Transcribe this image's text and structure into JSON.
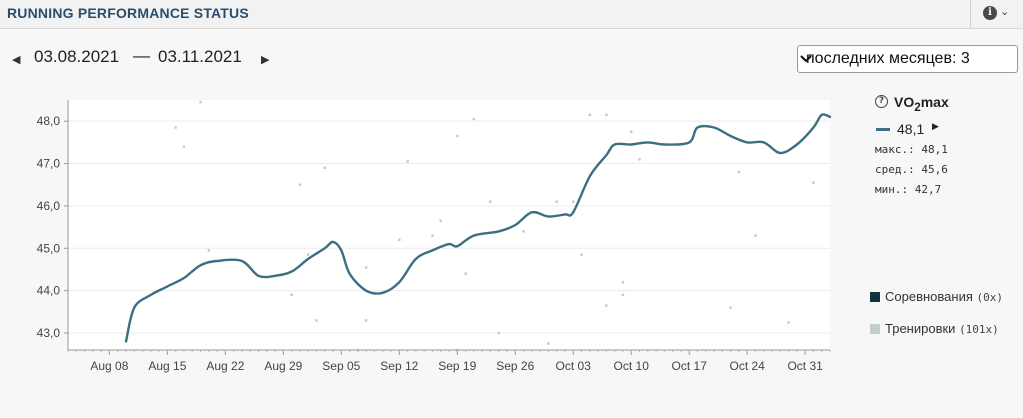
{
  "header": {
    "title": "RUNNING PERFORMANCE STATUS",
    "info_icon": "info-icon",
    "menu_icon": "chevron-down-icon"
  },
  "date_range": {
    "start": "03.08.2021",
    "separator": "—",
    "end": "03.11.2021",
    "prev_icon": "triangle-left-icon",
    "next_icon": "triangle-right-icon"
  },
  "period_select": {
    "selected": "последних месяцев: 3"
  },
  "legend": {
    "metric_main": "VO",
    "metric_sub": "2",
    "metric_tail": "max",
    "current_value": "48,1",
    "max": "макс.: 48,1",
    "avg": "сред.: 45,6",
    "min": "мин.: 42,7",
    "competitions_label": "Соревнования",
    "competitions_count": "(0x)",
    "trainings_label": "Тренировки",
    "trainings_count": "(101x)",
    "colors": {
      "line": "#3d6f82",
      "competitions": "#123140",
      "trainings": "#c3cfcd",
      "dots": "#c7c7c7"
    }
  },
  "chart_data": {
    "type": "line",
    "ylim": [
      42.6,
      48.5
    ],
    "yticks": [
      "43,0",
      "44,0",
      "45,0",
      "46,0",
      "47,0",
      "48,0"
    ],
    "ytick_values": [
      43,
      44,
      45,
      46,
      47,
      48
    ],
    "x_start": "2021-08-03",
    "x_end": "2021-11-03",
    "xticks": [
      "Aug 08",
      "Aug 15",
      "Aug 22",
      "Aug 29",
      "Sep 05",
      "Sep 12",
      "Sep 19",
      "Sep 26",
      "Oct 03",
      "Oct 10",
      "Oct 17",
      "Oct 24",
      "Oct 31"
    ],
    "xtick_dates": [
      "2021-08-08",
      "2021-08-15",
      "2021-08-22",
      "2021-08-29",
      "2021-09-05",
      "2021-09-12",
      "2021-09-19",
      "2021-09-26",
      "2021-10-03",
      "2021-10-10",
      "2021-10-17",
      "2021-10-24",
      "2021-10-31"
    ],
    "grid": true,
    "series": [
      {
        "name": "VO2max",
        "points": [
          [
            "2021-08-10",
            42.8
          ],
          [
            "2021-08-11",
            43.6
          ],
          [
            "2021-08-13",
            43.9
          ],
          [
            "2021-08-15",
            44.1
          ],
          [
            "2021-08-17",
            44.3
          ],
          [
            "2021-08-19",
            44.6
          ],
          [
            "2021-08-21",
            44.7
          ],
          [
            "2021-08-24",
            44.7
          ],
          [
            "2021-08-26",
            44.35
          ],
          [
            "2021-08-28",
            44.35
          ],
          [
            "2021-08-30",
            44.45
          ],
          [
            "2021-09-01",
            44.75
          ],
          [
            "2021-09-03",
            45.0
          ],
          [
            "2021-09-04",
            45.15
          ],
          [
            "2021-09-05",
            44.95
          ],
          [
            "2021-09-06",
            44.4
          ],
          [
            "2021-09-08",
            44.0
          ],
          [
            "2021-09-10",
            43.95
          ],
          [
            "2021-09-12",
            44.2
          ],
          [
            "2021-09-14",
            44.75
          ],
          [
            "2021-09-16",
            44.95
          ],
          [
            "2021-09-18",
            45.1
          ],
          [
            "2021-09-19",
            45.05
          ],
          [
            "2021-09-21",
            45.3
          ],
          [
            "2021-09-24",
            45.4
          ],
          [
            "2021-09-26",
            45.55
          ],
          [
            "2021-09-28",
            45.85
          ],
          [
            "2021-09-30",
            45.75
          ],
          [
            "2021-10-02",
            45.8
          ],
          [
            "2021-10-03",
            45.85
          ],
          [
            "2021-10-05",
            46.7
          ],
          [
            "2021-10-07",
            47.2
          ],
          [
            "2021-10-08",
            47.45
          ],
          [
            "2021-10-10",
            47.45
          ],
          [
            "2021-10-12",
            47.5
          ],
          [
            "2021-10-14",
            47.45
          ],
          [
            "2021-10-17",
            47.5
          ],
          [
            "2021-10-18",
            47.85
          ],
          [
            "2021-10-20",
            47.85
          ],
          [
            "2021-10-22",
            47.65
          ],
          [
            "2021-10-24",
            47.5
          ],
          [
            "2021-10-26",
            47.5
          ],
          [
            "2021-10-28",
            47.25
          ],
          [
            "2021-10-30",
            47.45
          ],
          [
            "2021-11-01",
            47.85
          ],
          [
            "2021-11-02",
            48.15
          ],
          [
            "2021-11-03",
            48.1
          ]
        ]
      },
      {
        "name": "Тренировки",
        "points": [
          [
            "2021-08-16",
            47.85
          ],
          [
            "2021-08-17",
            47.4
          ],
          [
            "2021-08-19",
            48.45
          ],
          [
            "2021-08-20",
            44.95
          ],
          [
            "2021-08-30",
            43.9
          ],
          [
            "2021-08-31",
            46.5
          ],
          [
            "2021-09-01",
            44.85
          ],
          [
            "2021-09-02",
            43.3
          ],
          [
            "2021-09-03",
            46.9
          ],
          [
            "2021-09-07",
            42.6
          ],
          [
            "2021-09-08",
            44.55
          ],
          [
            "2021-09-08",
            43.3
          ],
          [
            "2021-09-12",
            45.2
          ],
          [
            "2021-09-13",
            47.05
          ],
          [
            "2021-09-16",
            45.3
          ],
          [
            "2021-09-17",
            45.65
          ],
          [
            "2021-09-19",
            42.6
          ],
          [
            "2021-09-19",
            47.65
          ],
          [
            "2021-09-20",
            44.4
          ],
          [
            "2021-09-21",
            48.05
          ],
          [
            "2021-09-23",
            46.1
          ],
          [
            "2021-09-24",
            43.0
          ],
          [
            "2021-09-27",
            45.4
          ],
          [
            "2021-09-30",
            42.75
          ],
          [
            "2021-10-01",
            46.1
          ],
          [
            "2021-10-03",
            46.1
          ],
          [
            "2021-10-04",
            44.85
          ],
          [
            "2021-10-05",
            48.15
          ],
          [
            "2021-10-07",
            48.15
          ],
          [
            "2021-10-07",
            43.65
          ],
          [
            "2021-10-09",
            43.9
          ],
          [
            "2021-10-09",
            44.2
          ],
          [
            "2021-10-10",
            47.75
          ],
          [
            "2021-10-11",
            47.1
          ],
          [
            "2021-10-22",
            43.6
          ],
          [
            "2021-10-23",
            46.8
          ],
          [
            "2021-10-25",
            45.3
          ],
          [
            "2021-10-29",
            43.25
          ],
          [
            "2021-11-01",
            46.55
          ]
        ]
      }
    ]
  }
}
